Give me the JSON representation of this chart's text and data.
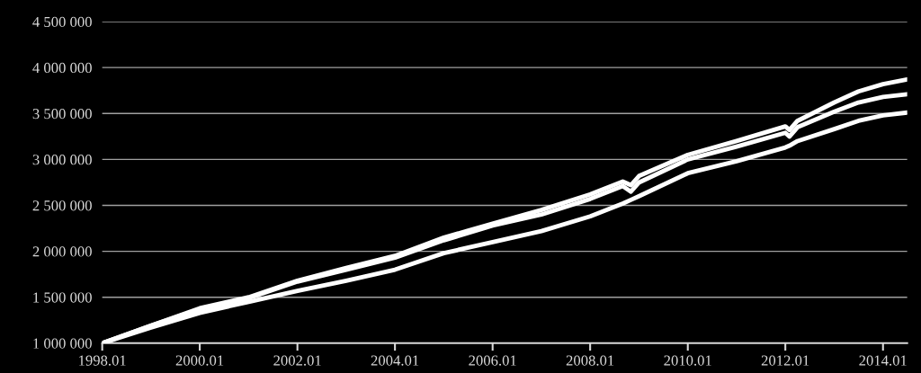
{
  "chart_data": {
    "type": "line",
    "x": [
      "1998-01",
      "1999-01",
      "2000-01",
      "2001-01",
      "2002-01",
      "2003-01",
      "2004-01",
      "2005-01",
      "2006-01",
      "2007-01",
      "2008-01",
      "2008-09",
      "2008-11",
      "2009-01",
      "2010-01",
      "2011-01",
      "2012-01",
      "2012-02",
      "2012-04",
      "2013-01",
      "2013-07",
      "2014-01",
      "2014-07"
    ],
    "series": [
      {
        "color": "#ffffff",
        "values": [
          1000000,
          1190000,
          1380000,
          1500000,
          1680000,
          1820000,
          1950000,
          2150000,
          2300000,
          2450000,
          2620000,
          2760000,
          2720000,
          2820000,
          3050000,
          3200000,
          3360000,
          3320000,
          3420000,
          3620000,
          3740000,
          3820000,
          3870000
        ]
      },
      {
        "color": "#ffffff",
        "values": [
          1000000,
          1190000,
          1370000,
          1490000,
          1670000,
          1800000,
          1930000,
          2120000,
          2280000,
          2400000,
          2570000,
          2710000,
          2650000,
          2750000,
          3000000,
          3140000,
          3290000,
          3250000,
          3350000,
          3520000,
          3620000,
          3680000,
          3710000
        ]
      },
      {
        "color": "#ffffff",
        "values": [
          1000000,
          1170000,
          1330000,
          1450000,
          1570000,
          1680000,
          1800000,
          1980000,
          2100000,
          2220000,
          2380000,
          2520000,
          2560000,
          2600000,
          2850000,
          2980000,
          3130000,
          3150000,
          3200000,
          3330000,
          3420000,
          3480000,
          3510000
        ]
      }
    ],
    "xlim": [
      "1998-01",
      "2014-07"
    ],
    "xticks": [
      {
        "value": "1998-01",
        "label": "1998.01"
      },
      {
        "value": "2000-01",
        "label": "2000.01"
      },
      {
        "value": "2002-01",
        "label": "2002.01"
      },
      {
        "value": "2004-01",
        "label": "2004.01"
      },
      {
        "value": "2006-01",
        "label": "2006.01"
      },
      {
        "value": "2008-01",
        "label": "2008.01"
      },
      {
        "value": "2010-01",
        "label": "2010.01"
      },
      {
        "value": "2012-01",
        "label": "2012.01"
      },
      {
        "value": "2014-01",
        "label": "2014.01"
      }
    ],
    "ylim": [
      1000000,
      4500000
    ],
    "yticks": [
      {
        "value": 1000000,
        "label": "1 000 000"
      },
      {
        "value": 1500000,
        "label": "1 500 000"
      },
      {
        "value": 2000000,
        "label": "2 000 000"
      },
      {
        "value": 2500000,
        "label": "2 500 000"
      },
      {
        "value": 3000000,
        "label": "3 000 000"
      },
      {
        "value": 3500000,
        "label": "3 500 000"
      },
      {
        "value": 4000000,
        "label": "4 000 000"
      },
      {
        "value": 4500000,
        "label": "4 500 000"
      }
    ],
    "grid": "y",
    "marker": "none",
    "line_style": "solid",
    "legend": false
  }
}
